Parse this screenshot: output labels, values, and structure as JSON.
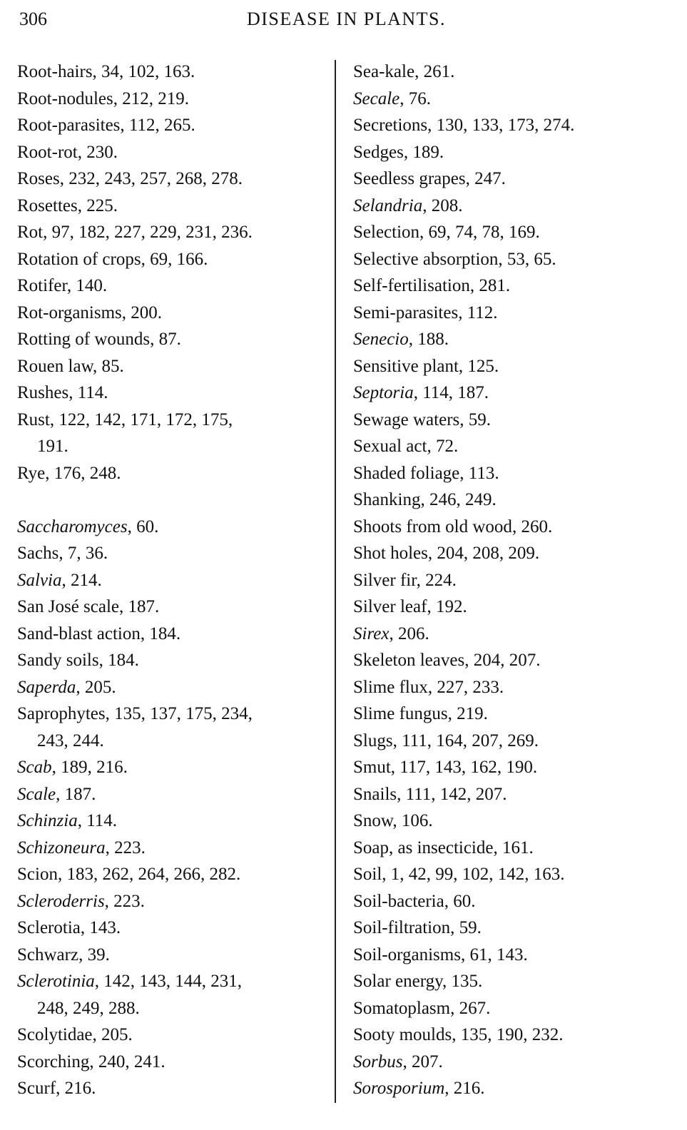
{
  "header": {
    "page_number": "306",
    "title": "DISEASE IN PLANTS."
  },
  "left_column": [
    {
      "term": "Root-hairs",
      "italic": false,
      "pages": ", 34, 102, 163."
    },
    {
      "term": "Root-nodules",
      "italic": false,
      "pages": ", 212, 219."
    },
    {
      "term": "Root-parasites",
      "italic": false,
      "pages": ", 112, 265."
    },
    {
      "term": "Root-rot",
      "italic": false,
      "pages": ", 230."
    },
    {
      "term": "Roses",
      "italic": false,
      "pages": ", 232, 243, 257, 268, 278."
    },
    {
      "term": "Rosettes",
      "italic": false,
      "pages": ", 225."
    },
    {
      "term": "Rot",
      "italic": false,
      "pages": ", 97, 182, 227, 229, 231, 236."
    },
    {
      "term": "Rotation of crops",
      "italic": false,
      "pages": ", 69, 166."
    },
    {
      "term": "Rotifer",
      "italic": false,
      "pages": ", 140."
    },
    {
      "term": "Rot-organisms",
      "italic": false,
      "pages": ", 200."
    },
    {
      "term": "Rotting of wounds",
      "italic": false,
      "pages": ", 87."
    },
    {
      "term": "Rouen law",
      "italic": false,
      "pages": ", 85."
    },
    {
      "term": "Rushes",
      "italic": false,
      "pages": ", 114."
    },
    {
      "term": "Rust",
      "italic": false,
      "pages": ", 122, 142, 171, 172, 175,"
    },
    {
      "term": "",
      "italic": false,
      "pages": "191.",
      "cont": true
    },
    {
      "term": "Rye",
      "italic": false,
      "pages": ", 176, 248."
    },
    {
      "term": "",
      "italic": false,
      "pages": ""
    },
    {
      "term": "Saccharomyces",
      "italic": true,
      "pages": ", 60."
    },
    {
      "term": "Sachs",
      "italic": false,
      "pages": ", 7, 36."
    },
    {
      "term": "Salvia",
      "italic": true,
      "pages": ", 214."
    },
    {
      "term": "San José scale",
      "italic": false,
      "pages": ", 187."
    },
    {
      "term": "Sand-blast action",
      "italic": false,
      "pages": ", 184."
    },
    {
      "term": "Sandy soils",
      "italic": false,
      "pages": ", 184."
    },
    {
      "term": "Saperda",
      "italic": true,
      "pages": ", 205."
    },
    {
      "term": "Saprophytes",
      "italic": false,
      "pages": ", 135, 137, 175, 234,"
    },
    {
      "term": "",
      "italic": false,
      "pages": "243, 244.",
      "cont": true
    },
    {
      "term": "Scab",
      "italic": true,
      "pages": ", 189, 216."
    },
    {
      "term": "Scale",
      "italic": true,
      "pages": ", 187."
    },
    {
      "term": "Schinzia",
      "italic": true,
      "pages": ", 114."
    },
    {
      "term": "Schizoneura",
      "italic": true,
      "pages": ", 223."
    },
    {
      "term": "Scion",
      "italic": false,
      "pages": ", 183, 262, 264, 266, 282."
    },
    {
      "term": "Scleroderris",
      "italic": true,
      "pages": ", 223."
    },
    {
      "term": "Sclerotia",
      "italic": false,
      "pages": ", 143."
    },
    {
      "term": "Schwarz",
      "italic": false,
      "pages": ", 39."
    },
    {
      "term": "Sclerotinia",
      "italic": true,
      "pages": ", 142, 143, 144, 231,"
    },
    {
      "term": "",
      "italic": false,
      "pages": "248, 249, 288.",
      "cont": true
    },
    {
      "term": "Scolytidae",
      "italic": false,
      "pages": ", 205."
    },
    {
      "term": "Scorching",
      "italic": false,
      "pages": ", 240, 241."
    },
    {
      "term": "Scurf",
      "italic": false,
      "pages": ", 216."
    }
  ],
  "right_column": [
    {
      "term": "Sea-kale",
      "italic": false,
      "pages": ", 261."
    },
    {
      "term": "Secale",
      "italic": true,
      "pages": ", 76."
    },
    {
      "term": "Secretions",
      "italic": false,
      "pages": ", 130, 133, 173, 274."
    },
    {
      "term": "Sedges",
      "italic": false,
      "pages": ", 189."
    },
    {
      "term": "Seedless grapes",
      "italic": false,
      "pages": ", 247."
    },
    {
      "term": "Selandria",
      "italic": true,
      "pages": ", 208."
    },
    {
      "term": "Selection",
      "italic": false,
      "pages": ", 69, 74, 78, 169."
    },
    {
      "term": "Selective absorption",
      "italic": false,
      "pages": ", 53, 65."
    },
    {
      "term": "Self-fertilisation",
      "italic": false,
      "pages": ", 281."
    },
    {
      "term": "Semi-parasites",
      "italic": false,
      "pages": ", 112."
    },
    {
      "term": "Senecio",
      "italic": true,
      "pages": ", 188."
    },
    {
      "term": "Sensitive plant",
      "italic": false,
      "pages": ", 125."
    },
    {
      "term": "Septoria",
      "italic": true,
      "pages": ", 114, 187."
    },
    {
      "term": "Sewage waters",
      "italic": false,
      "pages": ", 59."
    },
    {
      "term": "Sexual act",
      "italic": false,
      "pages": ", 72."
    },
    {
      "term": "Shaded foliage",
      "italic": false,
      "pages": ", 113."
    },
    {
      "term": "Shanking",
      "italic": false,
      "pages": ", 246, 249."
    },
    {
      "term": "Shoots from old wood",
      "italic": false,
      "pages": ", 260."
    },
    {
      "term": "Shot holes",
      "italic": false,
      "pages": ", 204, 208, 209."
    },
    {
      "term": "Silver fir",
      "italic": false,
      "pages": ", 224."
    },
    {
      "term": "Silver leaf",
      "italic": false,
      "pages": ", 192."
    },
    {
      "term": "Sirex",
      "italic": true,
      "pages": ", 206."
    },
    {
      "term": "Skeleton leaves",
      "italic": false,
      "pages": ", 204, 207."
    },
    {
      "term": "Slime flux",
      "italic": false,
      "pages": ", 227, 233."
    },
    {
      "term": "Slime fungus",
      "italic": false,
      "pages": ", 219."
    },
    {
      "term": "Slugs",
      "italic": false,
      "pages": ", 111, 164, 207, 269."
    },
    {
      "term": "Smut",
      "italic": false,
      "pages": ", 117, 143, 162, 190."
    },
    {
      "term": "Snails",
      "italic": false,
      "pages": ", 111, 142, 207."
    },
    {
      "term": "Snow",
      "italic": false,
      "pages": ", 106."
    },
    {
      "term": "Soap, as insecticide",
      "italic": false,
      "pages": ", 161."
    },
    {
      "term": "Soil",
      "italic": false,
      "pages": ", 1, 42, 99, 102, 142, 163."
    },
    {
      "term": "Soil-bacteria",
      "italic": false,
      "pages": ", 60."
    },
    {
      "term": "Soil-filtration",
      "italic": false,
      "pages": ", 59."
    },
    {
      "term": "Soil-organisms",
      "italic": false,
      "pages": ", 61, 143."
    },
    {
      "term": "Solar energy",
      "italic": false,
      "pages": ", 135."
    },
    {
      "term": "Somatoplasm",
      "italic": false,
      "pages": ", 267."
    },
    {
      "term": "Sooty moulds",
      "italic": false,
      "pages": ", 135, 190, 232."
    },
    {
      "term": "Sorbus",
      "italic": true,
      "pages": ", 207."
    },
    {
      "term": "Sorosporium",
      "italic": true,
      "pages": ", 216."
    }
  ]
}
